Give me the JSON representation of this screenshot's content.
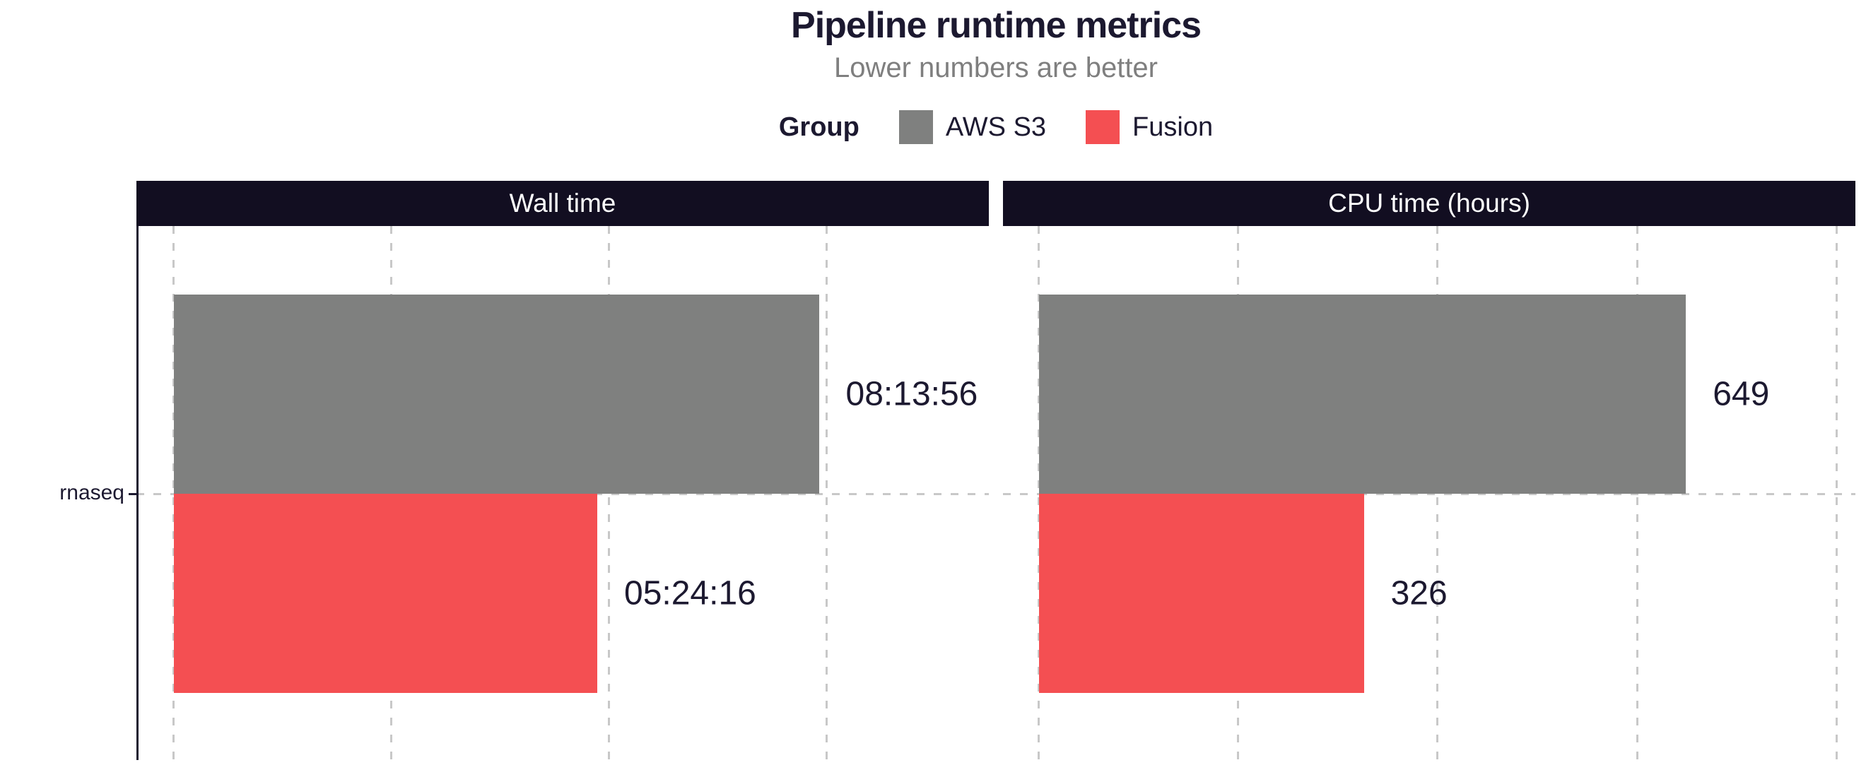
{
  "title": "Pipeline runtime metrics",
  "subtitle": "Lower numbers are better",
  "legend": {
    "title": "Group",
    "items": [
      {
        "label": "AWS S3",
        "color": "#7f807f"
      },
      {
        "label": "Fusion",
        "color": "#f44f52"
      }
    ]
  },
  "y_axis": {
    "category": "rnaseq"
  },
  "colors": {
    "strip_bg": "#120e21",
    "strip_text": "#ffffff",
    "text_dark": "#1c1930",
    "subtitle_text": "#7f7f7f",
    "gridline": "#c8c8c8",
    "axis_line": "#1c1930",
    "aws_s3_bar": "#7f807f",
    "fusion_bar": "#f44f52"
  },
  "chart_data": [
    {
      "type": "bar",
      "orientation": "horizontal",
      "facet": "Wall time",
      "categories": [
        "rnaseq"
      ],
      "unit": "seconds",
      "xlim": [
        -1715,
        37444
      ],
      "gridlines": [
        0,
        10000,
        20000,
        30000
      ],
      "grid": "dashed",
      "legend_position": "top",
      "series": [
        {
          "name": "AWS S3",
          "values": [
            29636
          ],
          "labels": [
            "08:13:56"
          ]
        },
        {
          "name": "Fusion",
          "values": [
            19456
          ],
          "labels": [
            "05:24:16"
          ]
        }
      ]
    },
    {
      "type": "bar",
      "orientation": "horizontal",
      "facet": "CPU time (hours)",
      "categories": [
        "rnaseq"
      ],
      "unit": "hours",
      "xlim": [
        -36,
        819
      ],
      "gridlines": [
        0,
        200,
        400,
        600,
        800
      ],
      "grid": "dashed",
      "legend_position": "top",
      "series": [
        {
          "name": "AWS S3",
          "values": [
            649
          ],
          "labels": [
            "649"
          ]
        },
        {
          "name": "Fusion",
          "values": [
            326
          ],
          "labels": [
            "326"
          ]
        }
      ]
    }
  ]
}
